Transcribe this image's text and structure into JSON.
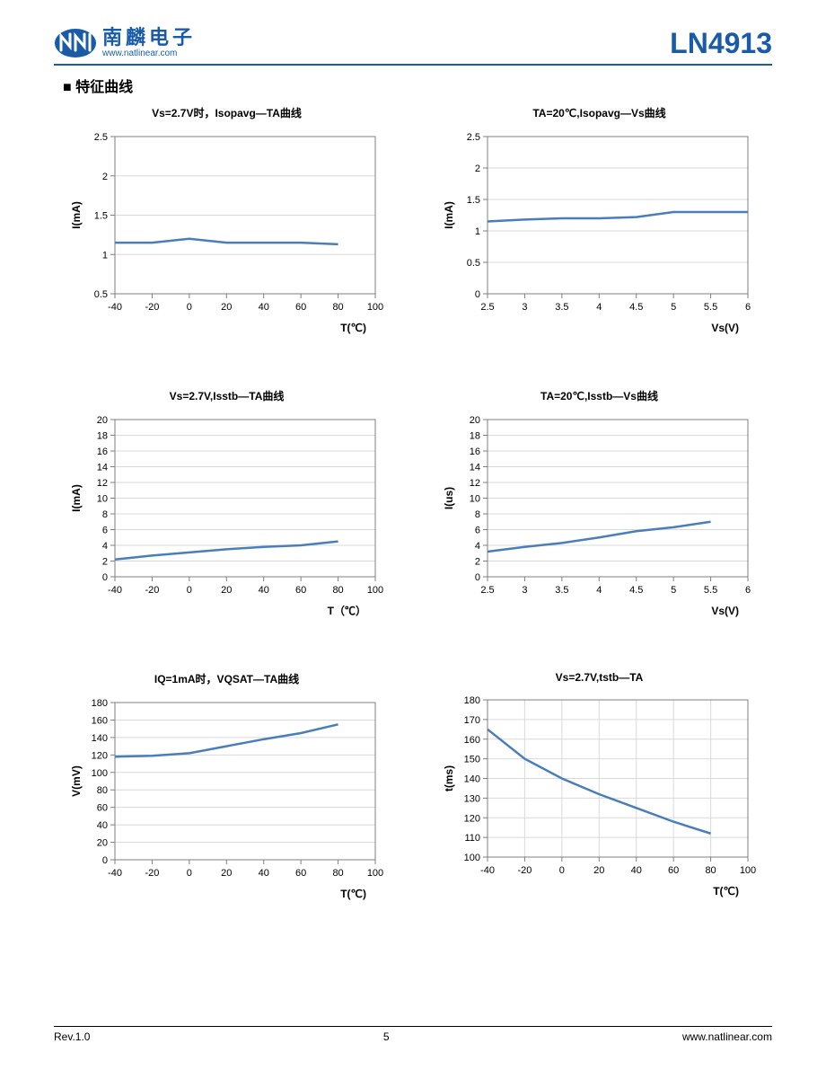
{
  "header": {
    "logo_cn": "南麟电子",
    "logo_url": "www.natlinear.com",
    "part_number": "LN4913",
    "logo_color": "#1a5ba8"
  },
  "section_title": "■ 特征曲线",
  "footer": {
    "rev": "Rev.1.0",
    "page": "5",
    "url": "www.natlinear.com"
  },
  "chart_style": {
    "line_color": "#4a7ebb",
    "line_width": 2.5,
    "grid_color": "#d9d9d9",
    "border_color": "#7f7f7f",
    "tick_font_size": 11,
    "label_font_size": 12,
    "title_font_size": 12,
    "bg_color": "#ffffff"
  },
  "charts": [
    {
      "title": "Vs=2.7V时，Isopavg—TA曲线",
      "xlabel": "T(℃)",
      "ylabel": "I(mA)",
      "xmin": -40,
      "xmax": 100,
      "ymin": 0.5,
      "ymax": 2.5,
      "xticks": [
        -40,
        -20,
        0,
        20,
        40,
        60,
        80,
        100
      ],
      "yticks": [
        0.5,
        1,
        1.5,
        2,
        2.5
      ],
      "xgrid": false,
      "data": [
        {
          "x": -40,
          "y": 1.15
        },
        {
          "x": -20,
          "y": 1.15
        },
        {
          "x": 0,
          "y": 1.2
        },
        {
          "x": 20,
          "y": 1.15
        },
        {
          "x": 40,
          "y": 1.15
        },
        {
          "x": 60,
          "y": 1.15
        },
        {
          "x": 80,
          "y": 1.13
        }
      ]
    },
    {
      "title": "TA=20℃,Isopavg—Vs曲线",
      "xlabel": "Vs(V)",
      "ylabel": "I(mA)",
      "xmin": 2.5,
      "xmax": 6,
      "ymin": 0,
      "ymax": 2.5,
      "xticks": [
        2.5,
        3,
        3.5,
        4,
        4.5,
        5,
        5.5,
        6
      ],
      "yticks": [
        0,
        0.5,
        1,
        1.5,
        2,
        2.5
      ],
      "xgrid": false,
      "data": [
        {
          "x": 2.5,
          "y": 1.15
        },
        {
          "x": 3,
          "y": 1.18
        },
        {
          "x": 3.5,
          "y": 1.2
        },
        {
          "x": 4,
          "y": 1.2
        },
        {
          "x": 4.5,
          "y": 1.22
        },
        {
          "x": 5,
          "y": 1.3
        },
        {
          "x": 5.5,
          "y": 1.3
        },
        {
          "x": 6,
          "y": 1.3
        }
      ]
    },
    {
      "title": "Vs=2.7V,Isstb—TA曲线",
      "xlabel": "T（℃）",
      "ylabel": "I(mA)",
      "xmin": -40,
      "xmax": 100,
      "ymin": 0,
      "ymax": 20,
      "xticks": [
        -40,
        -20,
        0,
        20,
        40,
        60,
        80,
        100
      ],
      "yticks": [
        0,
        2,
        4,
        6,
        8,
        10,
        12,
        14,
        16,
        18,
        20
      ],
      "xgrid": false,
      "data": [
        {
          "x": -40,
          "y": 2.2
        },
        {
          "x": -20,
          "y": 2.7
        },
        {
          "x": 0,
          "y": 3.1
        },
        {
          "x": 20,
          "y": 3.5
        },
        {
          "x": 40,
          "y": 3.8
        },
        {
          "x": 60,
          "y": 4.0
        },
        {
          "x": 80,
          "y": 4.5
        }
      ]
    },
    {
      "title": "TA=20℃,Isstb—Vs曲线",
      "xlabel": "Vs(V)",
      "ylabel": "I(us)",
      "xmin": 2.5,
      "xmax": 6,
      "ymin": 0,
      "ymax": 20,
      "xticks": [
        2.5,
        3,
        3.5,
        4,
        4.5,
        5,
        5.5,
        6
      ],
      "yticks": [
        0,
        2,
        4,
        6,
        8,
        10,
        12,
        14,
        16,
        18,
        20
      ],
      "xgrid": false,
      "data": [
        {
          "x": 2.5,
          "y": 3.2
        },
        {
          "x": 3,
          "y": 3.8
        },
        {
          "x": 3.5,
          "y": 4.3
        },
        {
          "x": 4,
          "y": 5.0
        },
        {
          "x": 4.5,
          "y": 5.8
        },
        {
          "x": 5,
          "y": 6.3
        },
        {
          "x": 5.5,
          "y": 7.0
        }
      ]
    },
    {
      "title": "IQ=1mA时，VQSAT—TA曲线",
      "xlabel": "T(℃)",
      "ylabel": "V(mV)",
      "xmin": -40,
      "xmax": 100,
      "ymin": 0,
      "ymax": 180,
      "xticks": [
        -40,
        -20,
        0,
        20,
        40,
        60,
        80,
        100
      ],
      "yticks": [
        0,
        20,
        40,
        60,
        80,
        100,
        120,
        140,
        160,
        180
      ],
      "xgrid": false,
      "data": [
        {
          "x": -40,
          "y": 118
        },
        {
          "x": -20,
          "y": 119
        },
        {
          "x": 0,
          "y": 122
        },
        {
          "x": 20,
          "y": 130
        },
        {
          "x": 40,
          "y": 138
        },
        {
          "x": 60,
          "y": 145
        },
        {
          "x": 80,
          "y": 155
        }
      ]
    },
    {
      "title": "Vs=2.7V,tstb—TA",
      "xlabel": "T(℃)",
      "ylabel": "t(ms)",
      "xmin": -40,
      "xmax": 100,
      "ymin": 100,
      "ymax": 180,
      "xticks": [
        -40,
        -20,
        0,
        20,
        40,
        60,
        80,
        100
      ],
      "yticks": [
        100,
        110,
        120,
        130,
        140,
        150,
        160,
        170,
        180
      ],
      "xgrid": true,
      "data": [
        {
          "x": -40,
          "y": 165
        },
        {
          "x": -20,
          "y": 150
        },
        {
          "x": 0,
          "y": 140
        },
        {
          "x": 20,
          "y": 132
        },
        {
          "x": 40,
          "y": 125
        },
        {
          "x": 60,
          "y": 118
        },
        {
          "x": 80,
          "y": 112
        }
      ]
    }
  ]
}
